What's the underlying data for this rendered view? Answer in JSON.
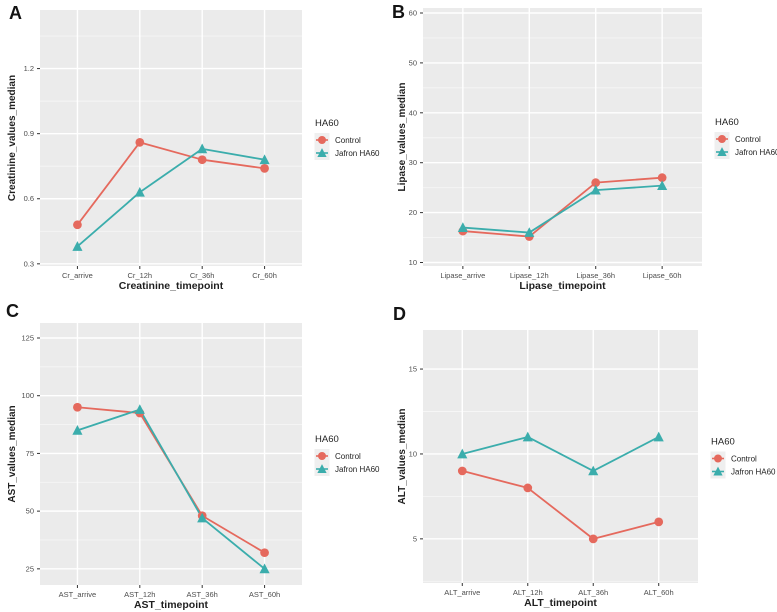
{
  "figure": {
    "background": "#ffffff"
  },
  "colors": {
    "control": "#E5695D",
    "jafron": "#3BADAC",
    "panel_bg": "#EBEBEB",
    "grid_major": "#FFFFFF",
    "grid_minor": "#F6F6F6",
    "tick_text": "#4D4D4D",
    "axis_title": "#1F1F1F",
    "tick_mark": "#333333",
    "legend_key_bg": "#EFEFEF",
    "legend_text": "#1F1F1F"
  },
  "chart_data": [
    {
      "panel_label": "A",
      "type": "line",
      "xlabel": "Creatinine_timepoint",
      "ylabel": "Creatinine_values_median",
      "categories": [
        "Cr_arrive",
        "Cr_12h",
        "Cr_36h",
        "Cr_60h"
      ],
      "series": [
        {
          "name": "Control",
          "marker": "circle",
          "color_key": "control",
          "values": [
            0.48,
            0.86,
            0.78,
            0.74
          ]
        },
        {
          "name": "Jafron HA60",
          "marker": "triangle",
          "color_key": "jafron",
          "values": [
            0.38,
            0.63,
            0.83,
            0.78
          ]
        }
      ],
      "yticks": [
        0.3,
        0.6,
        0.9,
        1.2
      ],
      "ylim": [
        0.29,
        1.47
      ],
      "legend_title": "HA60",
      "legend_position": "right",
      "grid": true
    },
    {
      "panel_label": "B",
      "type": "line",
      "xlabel": "Lipase_timepoint",
      "ylabel": "Lipase_values_median",
      "categories": [
        "Lipase_arrive",
        "Lipase_12h",
        "Lipase_36h",
        "Lipase_60h"
      ],
      "series": [
        {
          "name": "Control",
          "marker": "circle",
          "color_key": "control",
          "values": [
            16.3,
            15.2,
            26,
            27
          ]
        },
        {
          "name": "Jafron HA60",
          "marker": "triangle",
          "color_key": "jafron",
          "values": [
            17,
            16,
            24.5,
            25.4
          ]
        }
      ],
      "yticks": [
        10,
        20,
        30,
        40,
        50,
        60
      ],
      "ylim": [
        9.3,
        61
      ],
      "legend_title": "HA60",
      "legend_position": "right",
      "grid": true
    },
    {
      "panel_label": "C",
      "type": "line",
      "xlabel": "AST_timepoint",
      "ylabel": "AST_values_median",
      "categories": [
        "AST_arrive",
        "AST_12h",
        "AST_36h",
        "AST_60h"
      ],
      "series": [
        {
          "name": "Control",
          "marker": "circle",
          "color_key": "control",
          "values": [
            95,
            92.5,
            48,
            32
          ]
        },
        {
          "name": "Jafron HA60",
          "marker": "triangle",
          "color_key": "jafron",
          "values": [
            85,
            94,
            47,
            25
          ]
        }
      ],
      "yticks": [
        25,
        50,
        75,
        100,
        125
      ],
      "ylim": [
        18,
        131.5
      ],
      "legend_title": "HA60",
      "legend_position": "right",
      "grid": true
    },
    {
      "panel_label": "D",
      "type": "line",
      "xlabel": "ALT_timepoint",
      "ylabel": "ALT_values_median",
      "categories": [
        "ALT_arrive",
        "ALT_12h",
        "ALT_36h",
        "ALT_60h"
      ],
      "series": [
        {
          "name": "Control",
          "marker": "circle",
          "color_key": "control",
          "values": [
            9,
            8,
            5,
            6
          ]
        },
        {
          "name": "Jafron HA60",
          "marker": "triangle",
          "color_key": "jafron",
          "values": [
            10,
            11,
            9,
            11
          ]
        }
      ],
      "yticks": [
        5,
        10,
        15
      ],
      "ylim": [
        2.4,
        17.3
      ],
      "legend_title": "HA60",
      "legend_position": "right",
      "grid": true
    }
  ]
}
